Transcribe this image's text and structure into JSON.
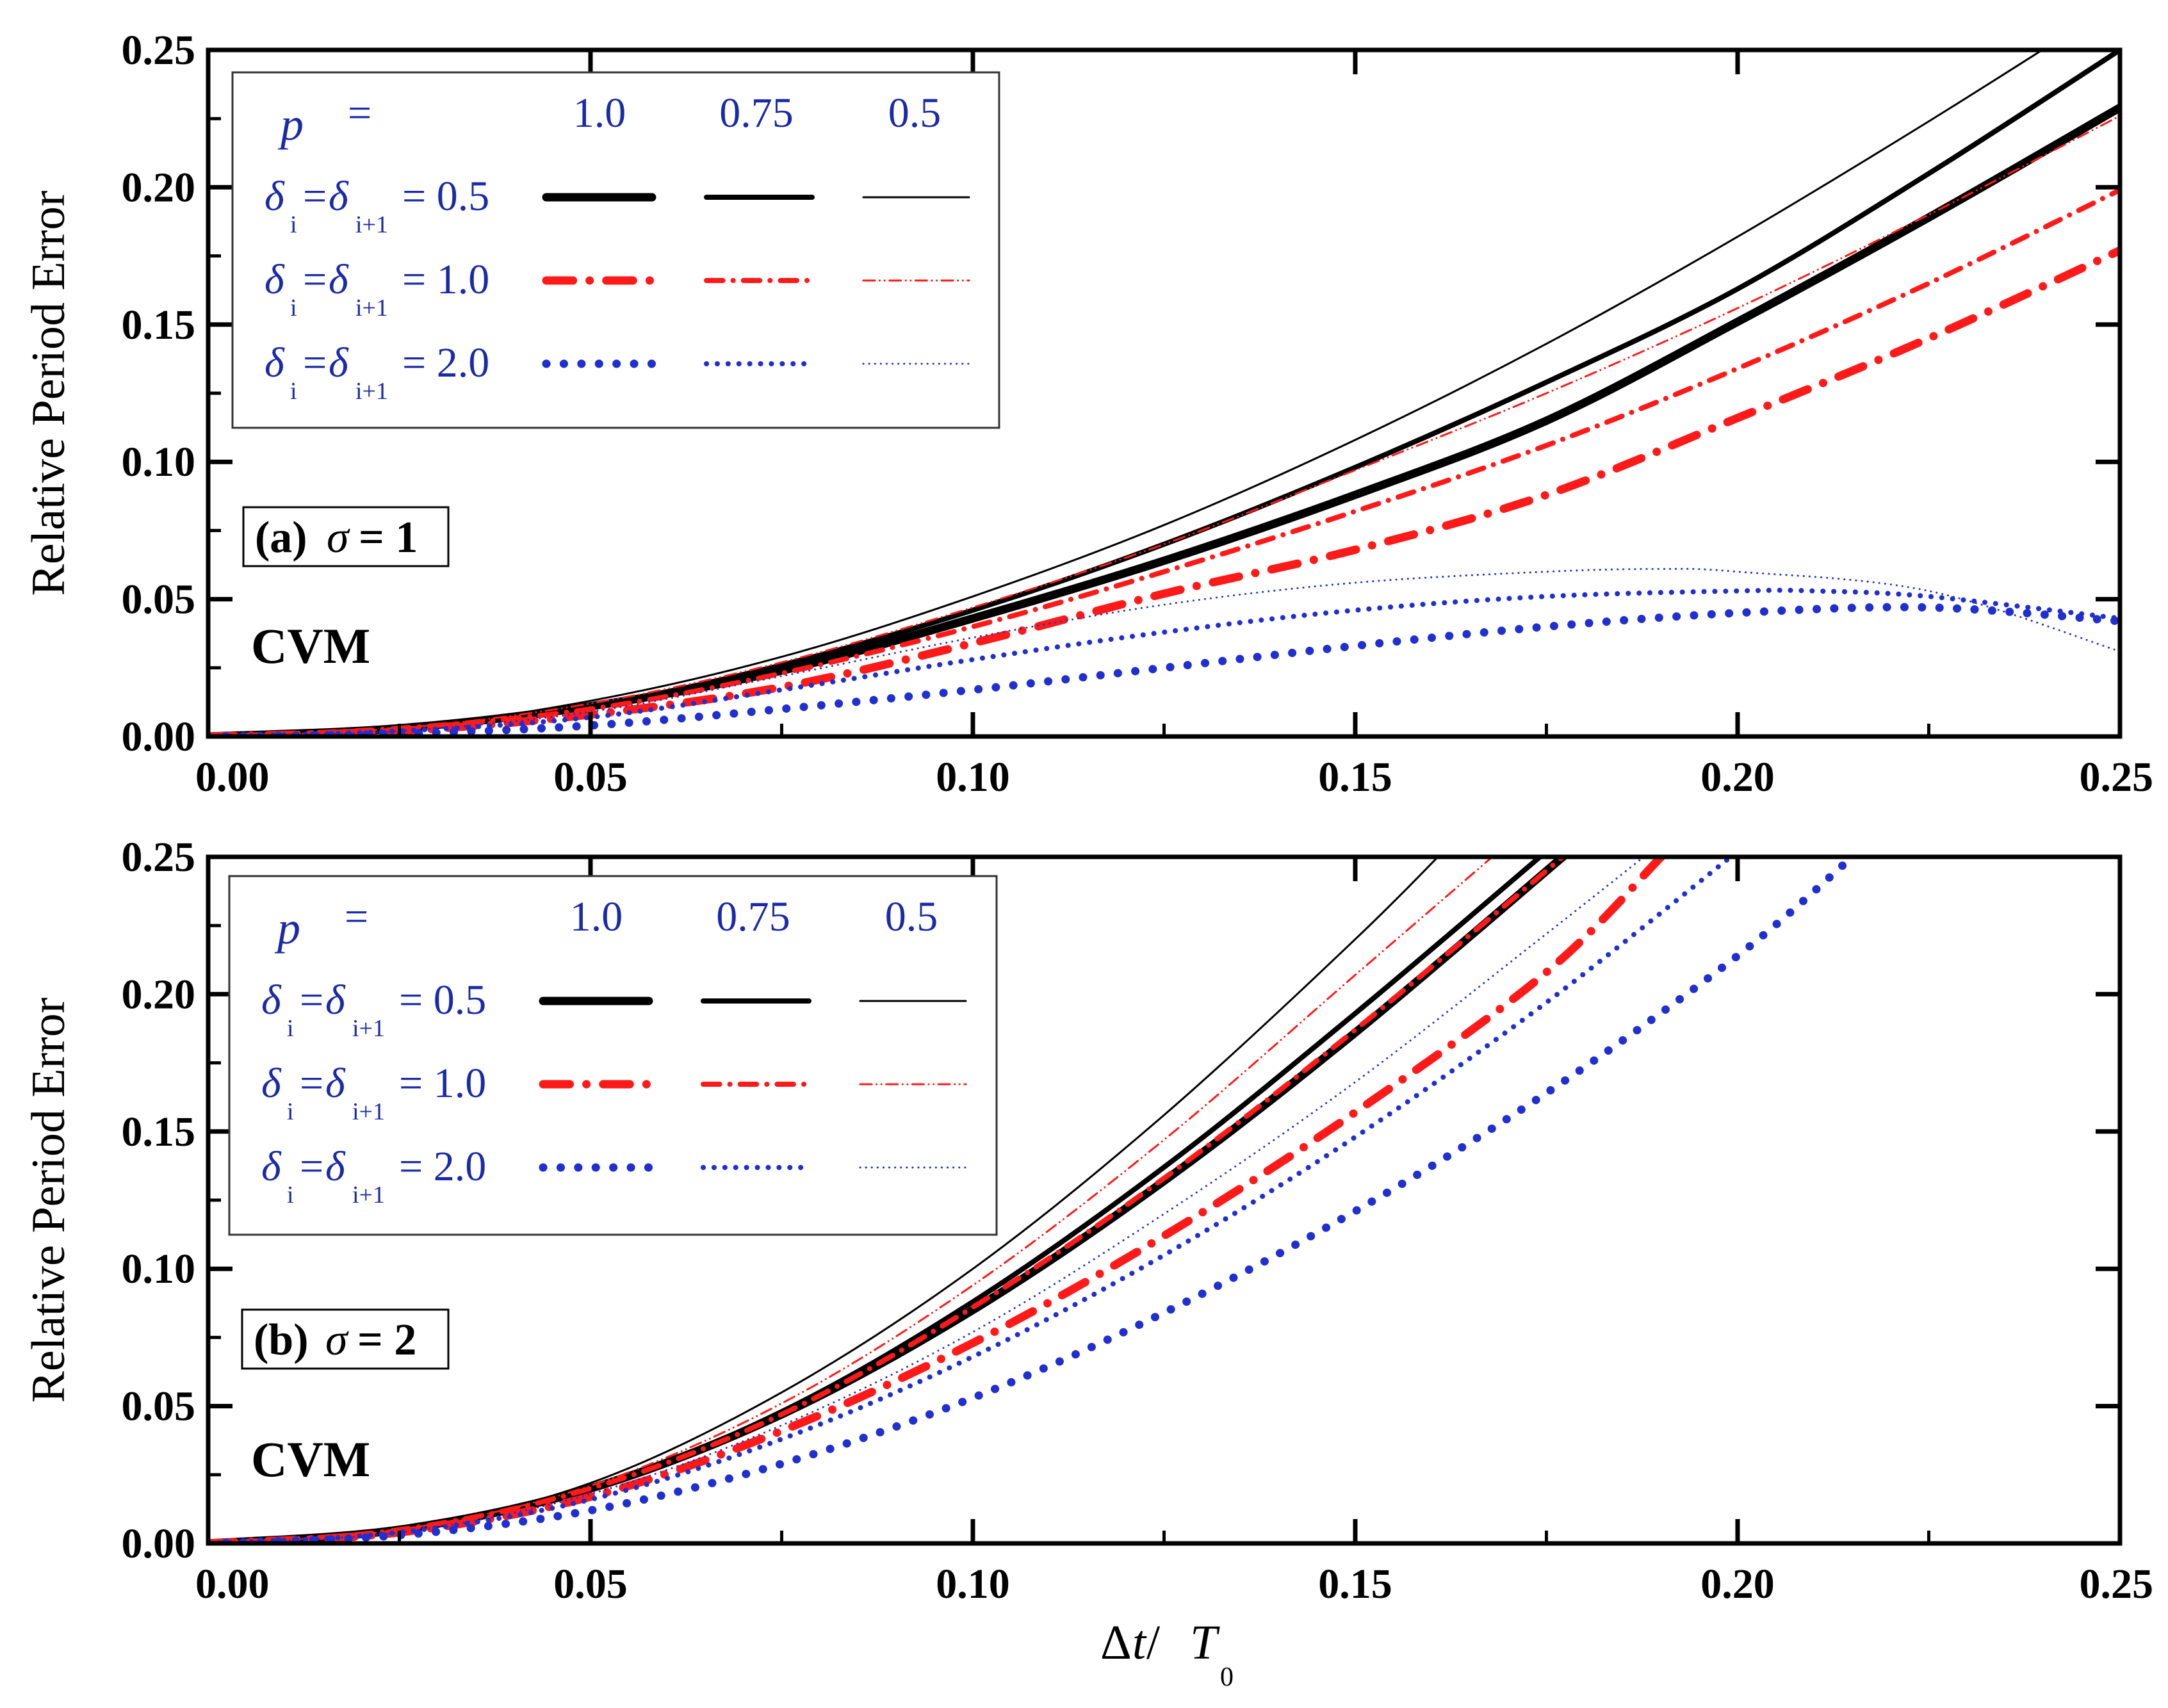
{
  "colors": {
    "black": "#000000",
    "red": "#ff1a1a",
    "blue": "#1f2fd0",
    "legend_text": "#1a2aa8"
  },
  "chart_data": [
    {
      "type": "line",
      "panel_label_prefix": "(a)",
      "panel_label_symbol": "σ",
      "panel_label_value": "= 1",
      "method": "CVM",
      "ylabel": "Relative Period Error",
      "xlim": [
        0,
        0.25
      ],
      "ylim": [
        0,
        0.25
      ],
      "xticks": [
        "0.00",
        "0.05",
        "0.10",
        "0.15",
        "0.20",
        "0.25"
      ],
      "yticks": [
        "0.00",
        "0.05",
        "0.10",
        "0.15",
        "0.20",
        "0.25"
      ],
      "legend": {
        "header_symbol": "p",
        "header_eq": "=",
        "p_values": [
          "1.0",
          "0.75",
          "0.5"
        ],
        "rows": [
          {
            "delta": "δ",
            "sub_i": "i",
            "eq": "=",
            "sub_i1": "i+1",
            "value": "= 0.5",
            "color": "black",
            "dash": "solid"
          },
          {
            "delta": "δ",
            "sub_i": "i",
            "eq": "=",
            "sub_i1": "i+1",
            "value": "= 1.0",
            "color": "red",
            "dash": "dashdot"
          },
          {
            "delta": "δ",
            "sub_i": "i",
            "eq": "=",
            "sub_i1": "i+1",
            "value": "= 2.0",
            "color": "blue",
            "dash": "dot"
          }
        ]
      },
      "series": [
        {
          "name": "δ=0.5, p=0.5",
          "color": "black",
          "dash": "solid",
          "width": 3,
          "x": [
            0,
            0.025,
            0.05,
            0.075,
            0.1,
            0.125,
            0.15,
            0.175,
            0.2,
            0.225,
            0.25
          ],
          "y": [
            0,
            0.003,
            0.013,
            0.029,
            0.051,
            0.077,
            0.108,
            0.143,
            0.182,
            0.224,
            0.268
          ]
        },
        {
          "name": "δ=0.5, p=0.75",
          "color": "black",
          "dash": "solid",
          "width": 8,
          "x": [
            0,
            0.025,
            0.05,
            0.075,
            0.1,
            0.125,
            0.15,
            0.175,
            0.2,
            0.225,
            0.25
          ],
          "y": [
            0,
            0.003,
            0.011,
            0.026,
            0.046,
            0.07,
            0.098,
            0.129,
            0.163,
            0.205,
            0.25
          ]
        },
        {
          "name": "δ=0.5, p=1.0",
          "color": "black",
          "dash": "solid",
          "width": 13,
          "x": [
            0,
            0.025,
            0.05,
            0.075,
            0.1,
            0.125,
            0.15,
            0.175,
            0.2,
            0.225,
            0.25
          ],
          "y": [
            0,
            0.003,
            0.011,
            0.024,
            0.043,
            0.064,
            0.088,
            0.115,
            0.151,
            0.189,
            0.229
          ]
        },
        {
          "name": "δ=1.0, p=0.5",
          "color": "red",
          "dash": "dashdotdot",
          "width": 3,
          "x": [
            0,
            0.025,
            0.05,
            0.075,
            0.1,
            0.125,
            0.15,
            0.175,
            0.2,
            0.225,
            0.25
          ],
          "y": [
            0,
            0.003,
            0.012,
            0.027,
            0.047,
            0.07,
            0.097,
            0.125,
            0.156,
            0.19,
            0.226
          ]
        },
        {
          "name": "δ=1.0, p=0.75",
          "color": "red",
          "dash": "dashdot",
          "width": 8,
          "x": [
            0,
            0.025,
            0.05,
            0.075,
            0.1,
            0.125,
            0.15,
            0.175,
            0.2,
            0.225,
            0.25
          ],
          "y": [
            0,
            0.003,
            0.01,
            0.023,
            0.04,
            0.06,
            0.082,
            0.106,
            0.134,
            0.165,
            0.199
          ]
        },
        {
          "name": "δ=1.0, p=1.0",
          "color": "red",
          "dash": "dashdot",
          "width": 13,
          "x": [
            0,
            0.025,
            0.05,
            0.075,
            0.1,
            0.125,
            0.15,
            0.175,
            0.2,
            0.225,
            0.25
          ],
          "y": [
            0,
            0.002,
            0.008,
            0.018,
            0.034,
            0.052,
            0.068,
            0.088,
            0.116,
            0.145,
            0.177
          ]
        },
        {
          "name": "δ=2.0, p=0.5",
          "color": "blue",
          "dash": "dot",
          "width": 3,
          "x": [
            0,
            0.025,
            0.05,
            0.075,
            0.1,
            0.125,
            0.15,
            0.175,
            0.19,
            0.2,
            0.225,
            0.25
          ],
          "y": [
            0,
            0.002,
            0.009,
            0.022,
            0.036,
            0.048,
            0.056,
            0.06,
            0.061,
            0.06,
            0.053,
            0.031
          ]
        },
        {
          "name": "δ=2.0, p=0.75",
          "color": "blue",
          "dash": "dot",
          "width": 8,
          "x": [
            0,
            0.025,
            0.05,
            0.075,
            0.1,
            0.125,
            0.15,
            0.175,
            0.2,
            0.21,
            0.225,
            0.25
          ],
          "y": [
            0,
            0.002,
            0.007,
            0.017,
            0.028,
            0.038,
            0.046,
            0.051,
            0.053,
            0.053,
            0.051,
            0.043
          ]
        },
        {
          "name": "δ=2.0, p=1.0",
          "color": "blue",
          "dash": "dot",
          "width": 13,
          "x": [
            0,
            0.025,
            0.05,
            0.075,
            0.1,
            0.125,
            0.15,
            0.175,
            0.2,
            0.225,
            0.25
          ],
          "y": [
            0,
            0.001,
            0.004,
            0.01,
            0.017,
            0.025,
            0.033,
            0.04,
            0.045,
            0.047,
            0.042
          ]
        }
      ]
    },
    {
      "type": "line",
      "panel_label_prefix": "(b)",
      "panel_label_symbol": "σ",
      "panel_label_value": "= 2",
      "method": "CVM",
      "ylabel": "Relative Period Error",
      "xlabel_delta": "Δ",
      "xlabel_t": "t",
      "xlabel_slash": " / ",
      "xlabel_T": "T",
      "xlabel_sub": "0",
      "xlim": [
        0,
        0.25
      ],
      "ylim": [
        0,
        0.25
      ],
      "xticks": [
        "0.00",
        "0.05",
        "0.10",
        "0.15",
        "0.20",
        "0.25"
      ],
      "yticks": [
        "0.00",
        "0.05",
        "0.10",
        "0.15",
        "0.20",
        "0.25"
      ],
      "legend": {
        "header_symbol": "p",
        "header_eq": "=",
        "p_values": [
          "1.0",
          "0.75",
          "0.5"
        ],
        "rows": [
          {
            "delta": "δ",
            "sub_i": "i",
            "eq": "=",
            "sub_i1": "i+1",
            "value": "= 0.5",
            "color": "black",
            "dash": "solid"
          },
          {
            "delta": "δ",
            "sub_i": "i",
            "eq": "=",
            "sub_i1": "i+1",
            "value": "= 1.0",
            "color": "red",
            "dash": "dashdot"
          },
          {
            "delta": "δ",
            "sub_i": "i",
            "eq": "=",
            "sub_i1": "i+1",
            "value": "= 2.0",
            "color": "blue",
            "dash": "dot"
          }
        ]
      },
      "series": [
        {
          "name": "δ=0.5, p=0.5",
          "color": "black",
          "dash": "solid",
          "width": 3,
          "x": [
            0,
            0.025,
            0.05,
            0.075,
            0.1,
            0.125,
            0.15,
            0.165
          ],
          "y": [
            0,
            0.005,
            0.022,
            0.055,
            0.1,
            0.156,
            0.22,
            0.262
          ]
        },
        {
          "name": "δ=0.5, p=0.75",
          "color": "black",
          "dash": "solid",
          "width": 8,
          "x": [
            0,
            0.025,
            0.05,
            0.075,
            0.1,
            0.125,
            0.15,
            0.175
          ],
          "y": [
            0,
            0.005,
            0.02,
            0.048,
            0.088,
            0.137,
            0.193,
            0.252
          ]
        },
        {
          "name": "δ=0.5, p=1.0",
          "color": "black",
          "dash": "solid",
          "width": 13,
          "x": [
            0,
            0.025,
            0.05,
            0.075,
            0.1,
            0.125,
            0.15,
            0.178
          ],
          "y": [
            0,
            0.005,
            0.02,
            0.047,
            0.085,
            0.132,
            0.186,
            0.252
          ]
        },
        {
          "name": "δ=1.0, p=0.5",
          "color": "red",
          "dash": "dashdotdot",
          "width": 3,
          "x": [
            0,
            0.025,
            0.05,
            0.075,
            0.1,
            0.125,
            0.15,
            0.17
          ],
          "y": [
            0,
            0.005,
            0.021,
            0.051,
            0.094,
            0.147,
            0.207,
            0.255
          ]
        },
        {
          "name": "δ=1.0, p=0.75",
          "color": "red",
          "dash": "dashdot",
          "width": 8,
          "x": [
            0,
            0.025,
            0.05,
            0.075,
            0.1,
            0.125,
            0.15,
            0.178
          ],
          "y": [
            0,
            0.005,
            0.02,
            0.047,
            0.086,
            0.133,
            0.187,
            0.252
          ]
        },
        {
          "name": "δ=1.0, p=1.0",
          "color": "red",
          "dash": "dashdot",
          "width": 13,
          "x": [
            0,
            0.025,
            0.05,
            0.075,
            0.1,
            0.125,
            0.15,
            0.175,
            0.19
          ],
          "y": [
            0,
            0.004,
            0.017,
            0.041,
            0.073,
            0.112,
            0.157,
            0.208,
            0.25
          ]
        },
        {
          "name": "δ=2.0, p=0.5",
          "color": "blue",
          "dash": "dot",
          "width": 3,
          "x": [
            0,
            0.025,
            0.05,
            0.075,
            0.1,
            0.125,
            0.15,
            0.175,
            0.19
          ],
          "y": [
            0,
            0.004,
            0.018,
            0.043,
            0.077,
            0.12,
            0.168,
            0.222,
            0.255
          ]
        },
        {
          "name": "δ=2.0, p=0.75",
          "color": "blue",
          "dash": "dot",
          "width": 8,
          "x": [
            0,
            0.025,
            0.05,
            0.075,
            0.1,
            0.125,
            0.15,
            0.175,
            0.2
          ],
          "y": [
            0,
            0.004,
            0.016,
            0.038,
            0.068,
            0.105,
            0.148,
            0.197,
            0.252
          ]
        },
        {
          "name": "δ=2.0, p=1.0",
          "color": "blue",
          "dash": "dot",
          "width": 13,
          "x": [
            0,
            0.025,
            0.05,
            0.075,
            0.1,
            0.125,
            0.15,
            0.175,
            0.2,
            0.215
          ],
          "y": [
            0,
            0.003,
            0.012,
            0.029,
            0.053,
            0.084,
            0.121,
            0.164,
            0.214,
            0.25
          ]
        }
      ]
    }
  ]
}
